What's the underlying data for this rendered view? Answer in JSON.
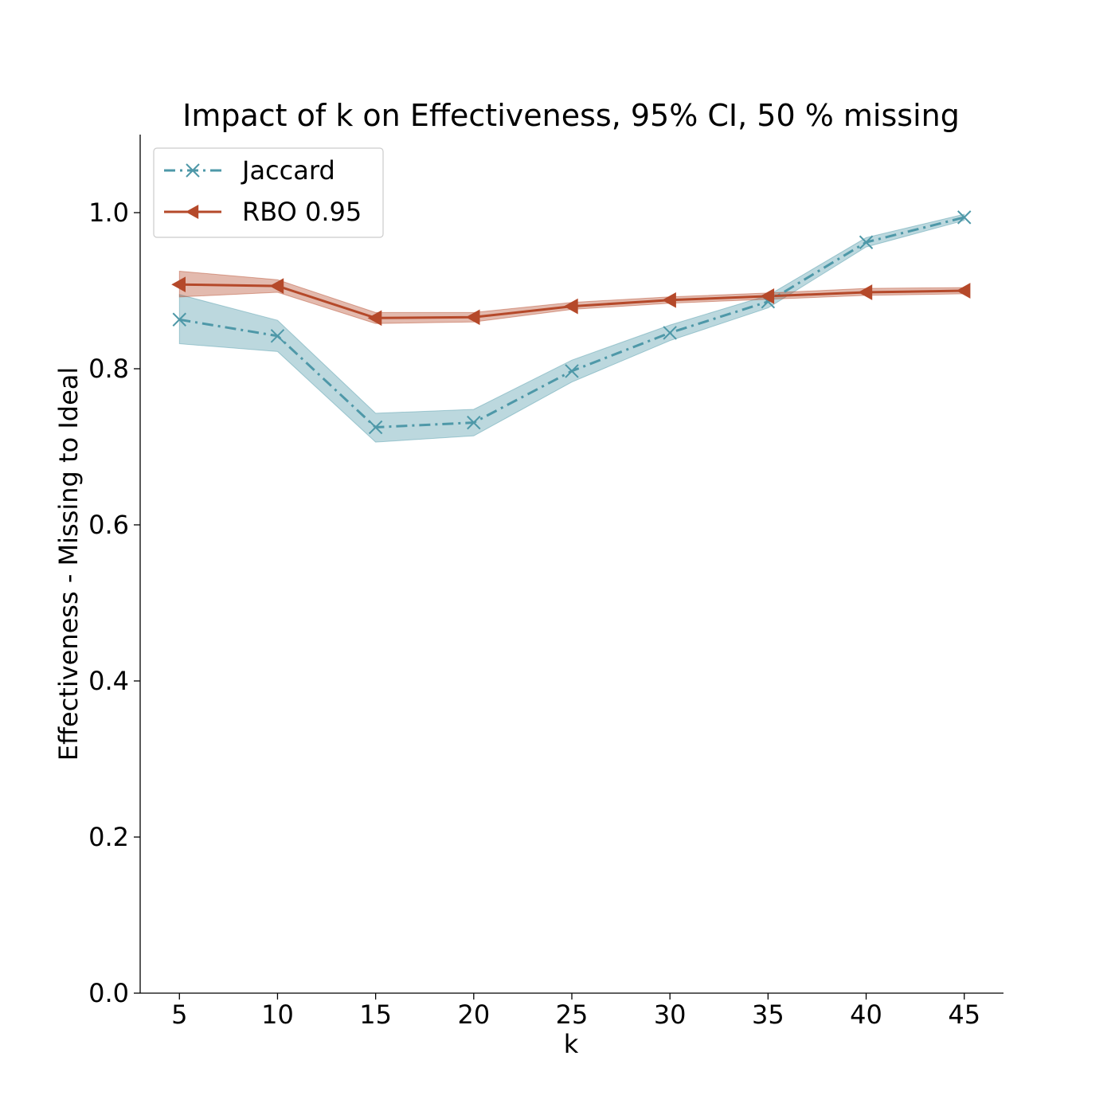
{
  "chart_data": {
    "type": "line",
    "title": "Impact of k on Effectiveness, 95% CI, 50 % missing",
    "xlabel": "k",
    "ylabel": "Effectiveness - Missing to Ideal",
    "x": [
      5,
      10,
      15,
      20,
      25,
      30,
      35,
      40,
      45
    ],
    "x_ticks": [
      "5",
      "10",
      "15",
      "20",
      "25",
      "30",
      "35",
      "40",
      "45"
    ],
    "y_ticks": [
      "0.0",
      "0.2",
      "0.4",
      "0.6",
      "0.8",
      "1.0"
    ],
    "xlim": [
      3,
      47
    ],
    "ylim": [
      0,
      1.1
    ],
    "grid": false,
    "legend_position": "top-left",
    "series": [
      {
        "name": "Jaccard",
        "color": "#4e98a8",
        "line_style": "dash-dot",
        "marker": "x",
        "values": [
          0.863,
          0.842,
          0.725,
          0.731,
          0.797,
          0.846,
          0.886,
          0.962,
          0.994
        ],
        "ci_lower": [
          0.832,
          0.822,
          0.706,
          0.714,
          0.783,
          0.836,
          0.878,
          0.956,
          0.99
        ],
        "ci_upper": [
          0.895,
          0.862,
          0.743,
          0.748,
          0.811,
          0.856,
          0.894,
          0.968,
          0.998
        ]
      },
      {
        "name": "RBO 0.95",
        "color": "#b5492a",
        "line_style": "solid",
        "marker": "triangle-left",
        "values": [
          0.908,
          0.906,
          0.865,
          0.866,
          0.88,
          0.888,
          0.893,
          0.898,
          0.9
        ],
        "ci_lower": [
          0.892,
          0.898,
          0.858,
          0.86,
          0.876,
          0.884,
          0.889,
          0.894,
          0.896
        ],
        "ci_upper": [
          0.925,
          0.914,
          0.872,
          0.872,
          0.885,
          0.892,
          0.897,
          0.903,
          0.904
        ]
      }
    ]
  }
}
